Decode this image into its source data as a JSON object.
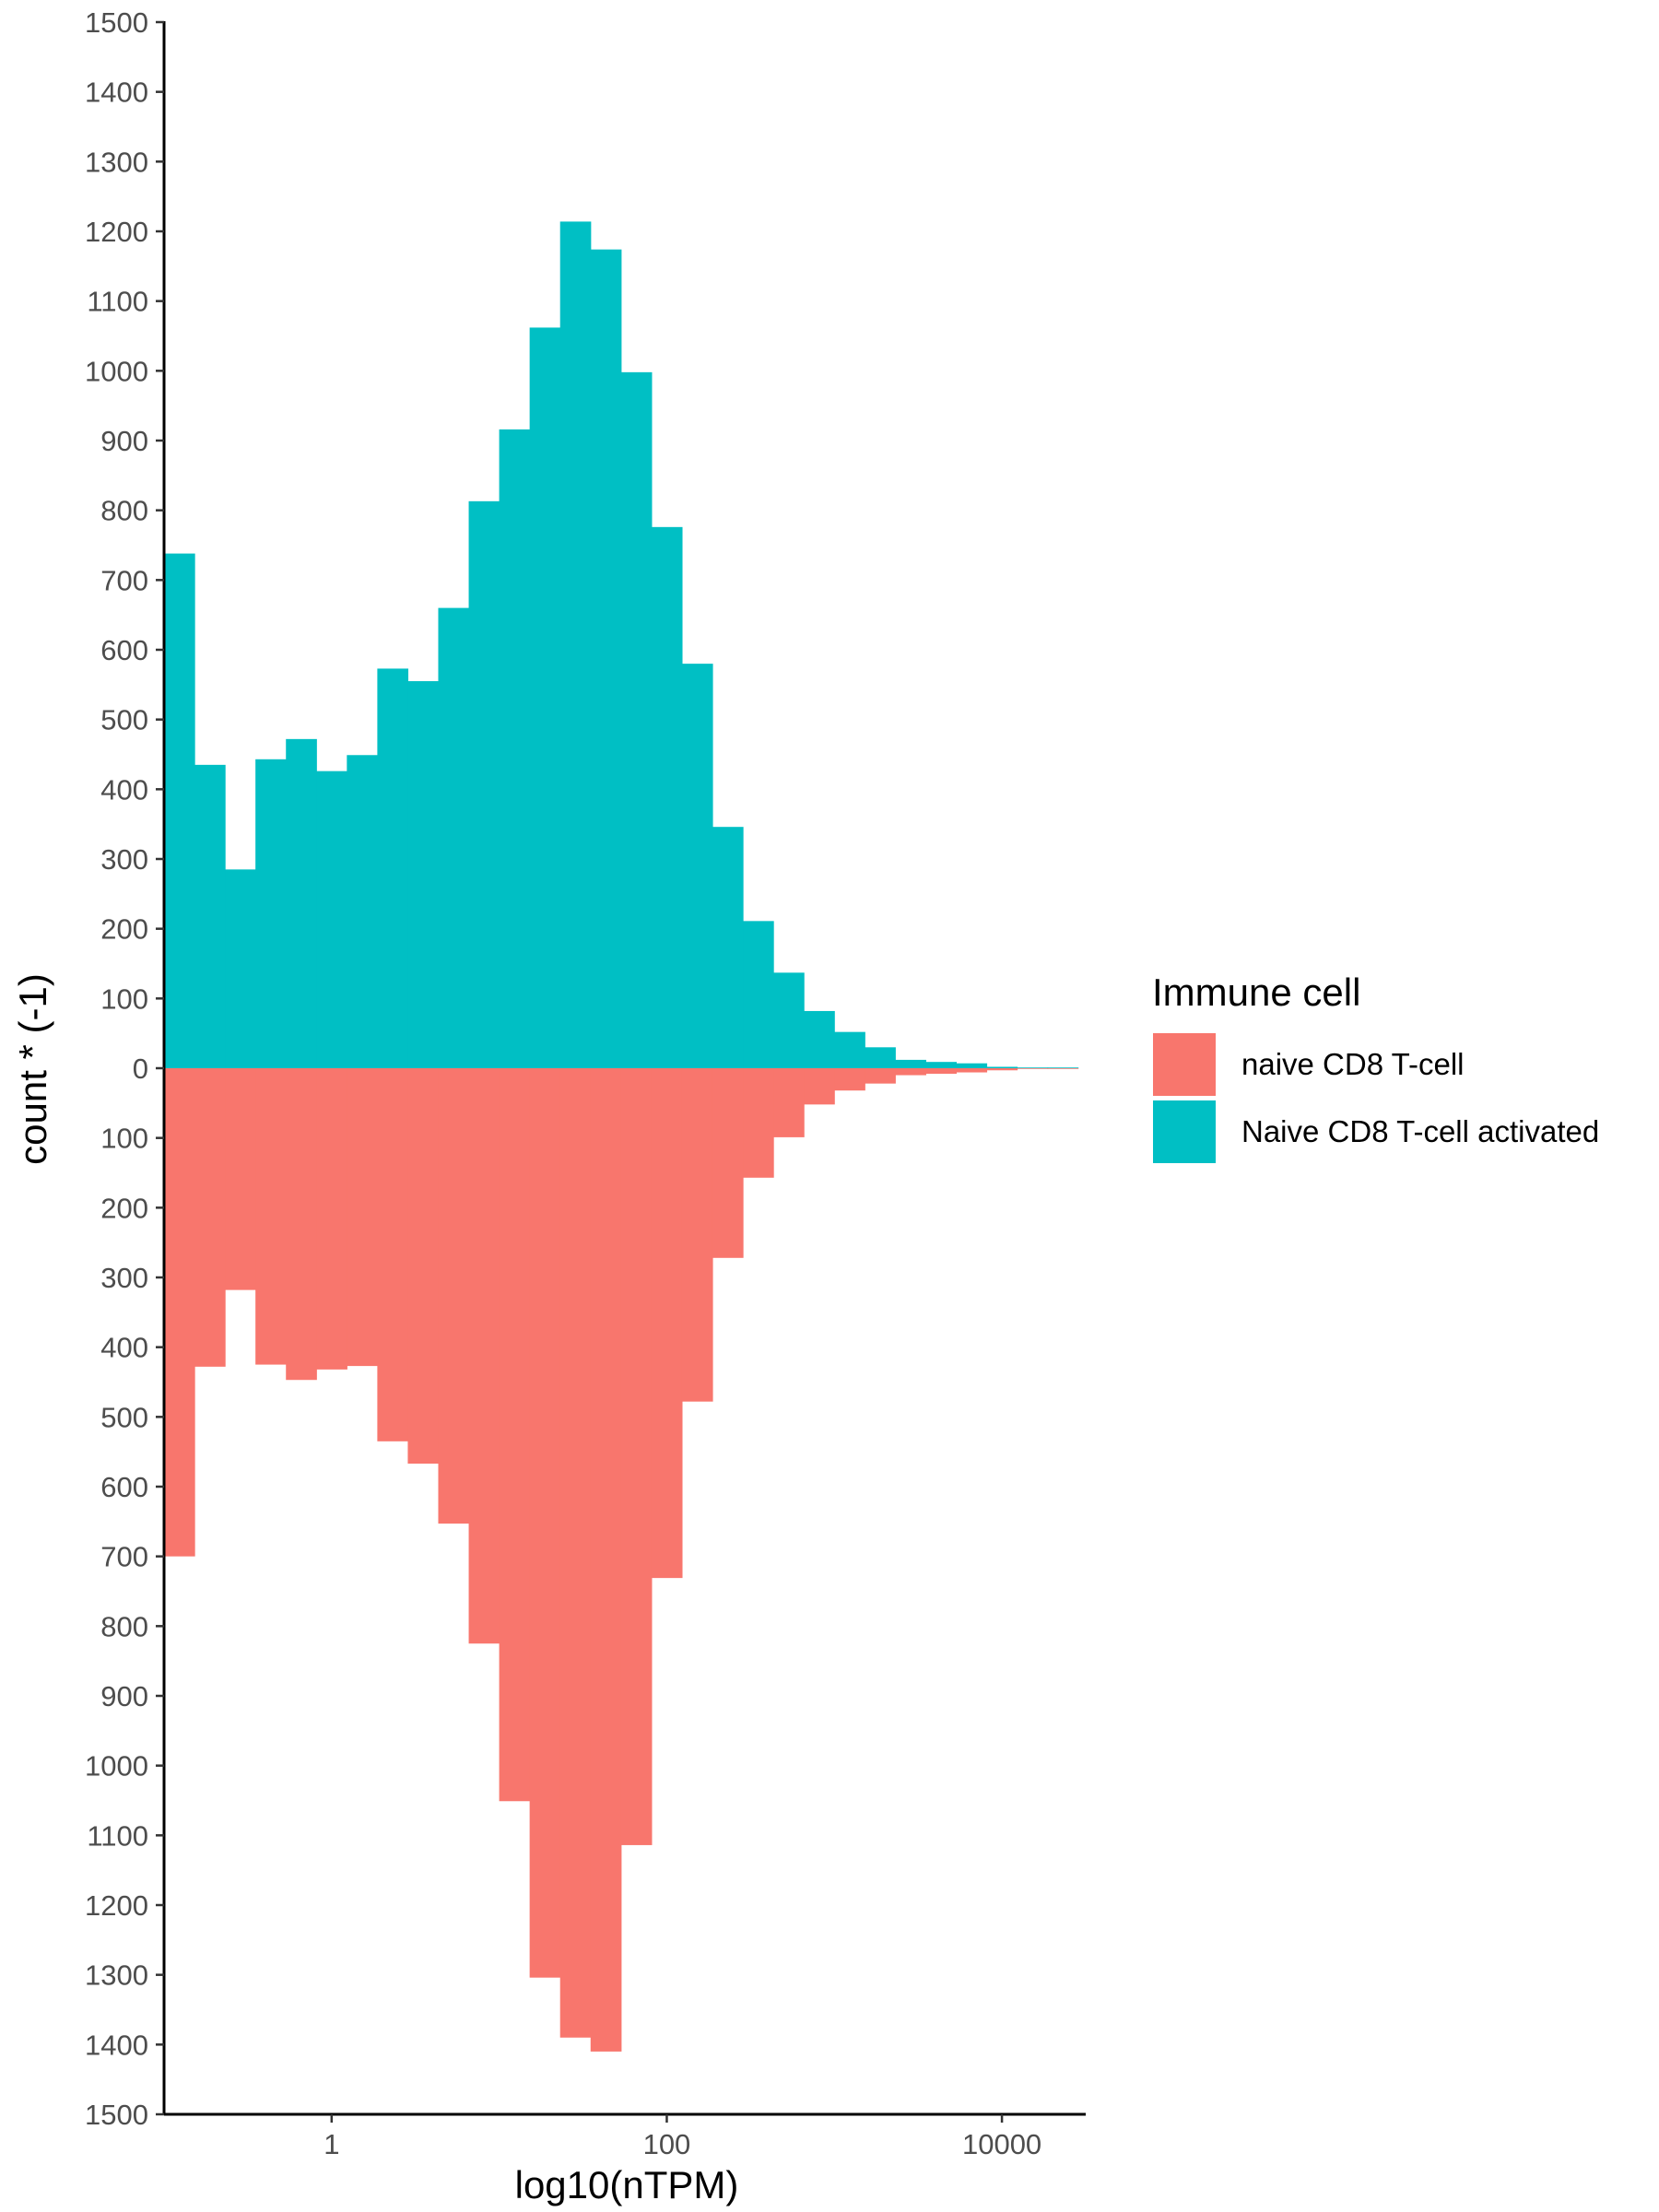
{
  "chart_data": {
    "type": "bar",
    "subtype": "mirrored-histogram",
    "xlabel": "log10(nTPM)",
    "ylabel": "count * (-1)",
    "x_scale": "log10",
    "x_ticks": [
      {
        "value": 1,
        "label": "1"
      },
      {
        "value": 100,
        "label": "100"
      },
      {
        "value": 10000,
        "label": "10000"
      }
    ],
    "y_ticks": [
      1500,
      1400,
      1300,
      1200,
      1100,
      1000,
      900,
      800,
      700,
      600,
      500,
      400,
      300,
      200,
      100,
      0,
      100,
      200,
      300,
      400,
      500,
      600,
      700,
      800,
      900,
      1000,
      1100,
      1200,
      1300,
      1400,
      1500
    ],
    "ylim": [
      -1500,
      1500
    ],
    "xlim_log10": [
      -1.0,
      4.5
    ],
    "bin_width_log10": 0.1818,
    "bin_start_log10": -1.0,
    "legend": {
      "title": "Immune cell",
      "position": "right",
      "entries": [
        {
          "label": "naive CD8 T-cell",
          "color": "#F8766D"
        },
        {
          "label": "Naive CD8 T-cell activated",
          "color": "#00BFC4"
        }
      ]
    },
    "series": [
      {
        "name": "Naive CD8 T-cell activated",
        "color": "#00BFC4",
        "direction": "up",
        "values": [
          738,
          435,
          285,
          443,
          472,
          426,
          449,
          573,
          555,
          660,
          813,
          916,
          1062,
          1214,
          1174,
          998,
          776,
          580,
          346,
          211,
          137,
          82,
          52,
          30,
          12,
          9,
          7,
          2,
          1,
          1
        ]
      },
      {
        "name": "naive CD8 T-cell",
        "color": "#F8766D",
        "direction": "down",
        "values": [
          700,
          428,
          318,
          425,
          447,
          432,
          427,
          535,
          567,
          653,
          825,
          1051,
          1304,
          1390,
          1410,
          1114,
          731,
          478,
          272,
          157,
          99,
          52,
          32,
          22,
          10,
          8,
          6,
          3,
          1,
          1
        ]
      }
    ]
  }
}
